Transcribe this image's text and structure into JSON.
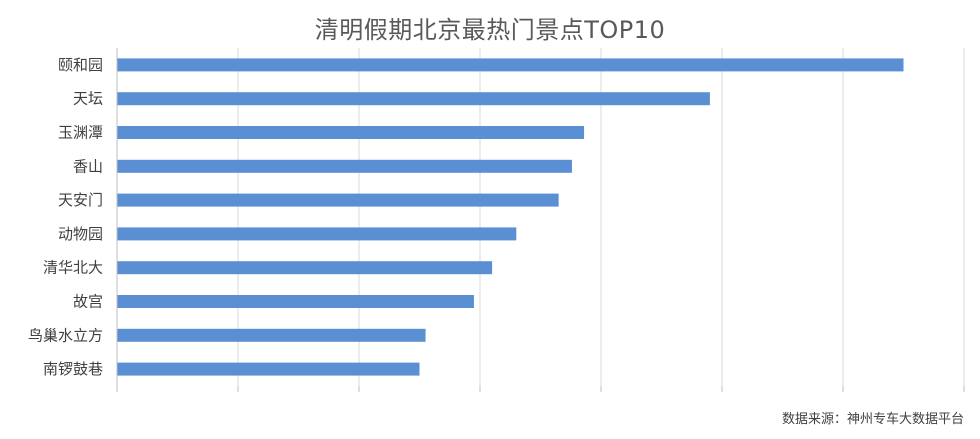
{
  "title": "清明假期北京最热门景点TOP10",
  "source": "数据来源：神州专车大数据平台",
  "colors": {
    "bar": "#5b8fd4",
    "grid": "#d9d9d9",
    "axis": "#bfbfbf",
    "text": "#404040",
    "title": "#595959"
  },
  "chart_data": {
    "type": "bar",
    "orientation": "horizontal",
    "title": "清明假期北京最热门景点TOP10",
    "categories": [
      "颐和园",
      "天坛",
      "玉渊潭",
      "香山",
      "天安门",
      "动物园",
      "清华北大",
      "故宫",
      "鸟巢水立方",
      "南锣鼓巷"
    ],
    "values": [
      6.5,
      4.9,
      3.86,
      3.76,
      3.65,
      3.3,
      3.1,
      2.95,
      2.55,
      2.5
    ],
    "xlim": [
      0,
      7
    ],
    "grid": true,
    "x_tick_labels_shown": false,
    "legend": "none"
  }
}
